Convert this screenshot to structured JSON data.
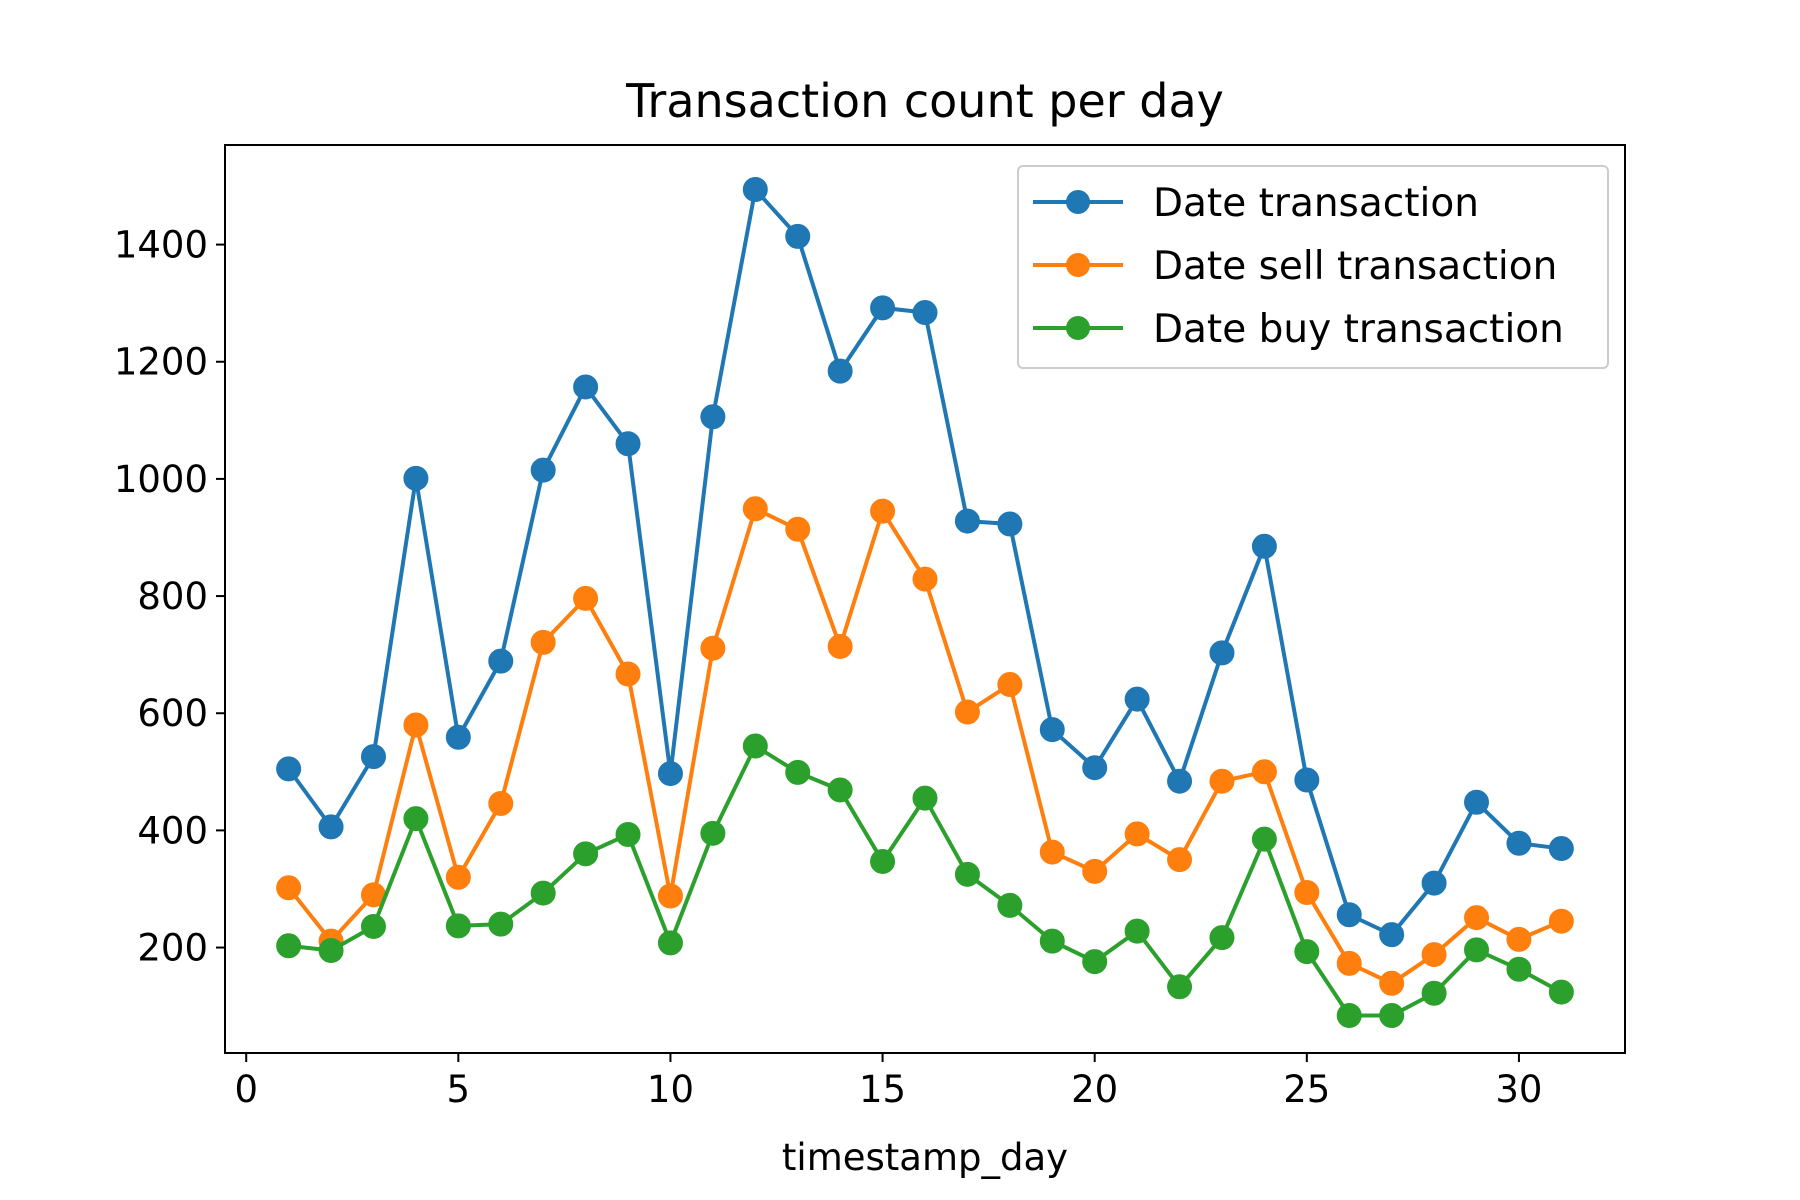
{
  "chart_data": {
    "type": "line",
    "title": "Transaction count per day",
    "xlabel": "timestamp_day",
    "ylabel": "",
    "x": [
      1,
      2,
      3,
      4,
      5,
      6,
      7,
      8,
      9,
      10,
      11,
      12,
      13,
      14,
      15,
      16,
      17,
      18,
      19,
      20,
      21,
      22,
      23,
      24,
      25,
      26,
      27,
      28,
      29,
      30,
      31
    ],
    "xlim": [
      -0.5,
      32.5
    ],
    "ylim": [
      20,
      1570
    ],
    "xticks": [
      0,
      5,
      10,
      15,
      20,
      25,
      30
    ],
    "xtick_labels": [
      "0",
      "5",
      "10",
      "15",
      "20",
      "25",
      "30"
    ],
    "yticks": [
      200,
      400,
      600,
      800,
      1000,
      1200,
      1400
    ],
    "ytick_labels": [
      "200",
      "400",
      "600",
      "800",
      "1000",
      "1200",
      "1400"
    ],
    "grid": false,
    "legend_position": "top-right",
    "series": [
      {
        "name": "Date transaction",
        "color": "#1f77b4",
        "values": [
          505,
          406,
          526,
          1001,
          559,
          689,
          1015,
          1157,
          1060,
          497,
          1106,
          1494,
          1414,
          1184,
          1292,
          1284,
          928,
          923,
          572,
          507,
          624,
          484,
          703,
          885,
          486,
          256,
          222,
          310,
          448,
          378,
          369
        ]
      },
      {
        "name": "Date sell transaction",
        "color": "#ff7f0e",
        "values": [
          302,
          211,
          290,
          580,
          320,
          446,
          721,
          796,
          667,
          288,
          711,
          949,
          914,
          714,
          945,
          829,
          602,
          649,
          363,
          330,
          394,
          350,
          484,
          500,
          294,
          173,
          139,
          188,
          251,
          214,
          245
        ]
      },
      {
        "name": "Date buy transaction",
        "color": "#2ca02c",
        "values": [
          203,
          195,
          236,
          420,
          237,
          240,
          293,
          360,
          393,
          208,
          395,
          544,
          499,
          469,
          347,
          455,
          325,
          272,
          211,
          176,
          228,
          133,
          217,
          385,
          193,
          84,
          84,
          122,
          196,
          163,
          124
        ]
      }
    ]
  }
}
